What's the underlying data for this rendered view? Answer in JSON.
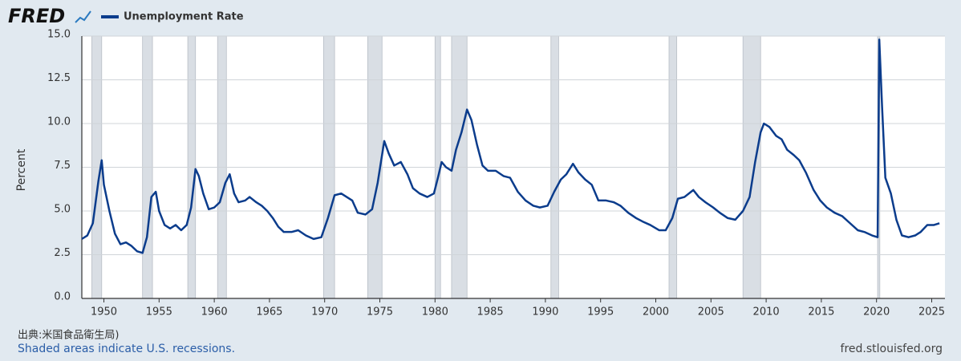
{
  "chart_data": {
    "type": "line",
    "logo": "FRED",
    "y_label": "Percent",
    "source": "出典:米国食品衛生局)",
    "note": "Shaded areas indicate U.S. recessions.",
    "website": "fred.stlouisfed.org",
    "grid": true,
    "xlim": [
      1948,
      2026.2
    ],
    "ylim": [
      0,
      15
    ],
    "xticks": [
      1950,
      1955,
      1960,
      1965,
      1970,
      1975,
      1980,
      1985,
      1990,
      1995,
      2000,
      2005,
      2010,
      2015,
      2020,
      2025
    ],
    "yticks": [
      {
        "value": 0,
        "label": "0.0"
      },
      2.5,
      {
        "value": 5,
        "label": "5.0"
      },
      7.5,
      {
        "value": 10,
        "label": "10.0"
      },
      12.5,
      {
        "value": 15,
        "label": "15.0"
      }
    ],
    "recession_color": "#d9dee4",
    "recessions": [
      [
        1948.9,
        1949.8
      ],
      [
        1953.5,
        1954.4
      ],
      [
        1957.6,
        1958.3
      ],
      [
        1960.3,
        1961.1
      ],
      [
        1969.9,
        1970.9
      ],
      [
        1973.9,
        1975.2
      ],
      [
        1980.0,
        1980.5
      ],
      [
        1981.5,
        1982.9
      ],
      [
        1990.5,
        1991.2
      ],
      [
        2001.2,
        2001.9
      ],
      [
        2007.9,
        2009.5
      ],
      [
        2020.1,
        2020.3
      ]
    ],
    "x": [
      1948.0,
      1948.5,
      1949.0,
      1949.5,
      1949.8,
      1950.0,
      1950.5,
      1951.0,
      1951.5,
      1952.0,
      1952.5,
      1953.0,
      1953.5,
      1953.9,
      1954.3,
      1954.7,
      1955.0,
      1955.5,
      1956.0,
      1956.5,
      1957.0,
      1957.5,
      1957.9,
      1958.3,
      1958.6,
      1959.0,
      1959.5,
      1960.0,
      1960.5,
      1961.0,
      1961.4,
      1961.8,
      1962.2,
      1962.8,
      1963.2,
      1963.8,
      1964.3,
      1964.8,
      1965.3,
      1965.8,
      1966.3,
      1967.0,
      1967.6,
      1968.3,
      1969.0,
      1969.7,
      1970.3,
      1970.9,
      1971.5,
      1972.0,
      1972.5,
      1973.0,
      1973.7,
      1974.3,
      1974.8,
      1975.4,
      1975.8,
      1976.3,
      1976.9,
      1977.5,
      1978.0,
      1978.6,
      1979.3,
      1979.9,
      1980.3,
      1980.6,
      1981.0,
      1981.5,
      1981.9,
      1982.4,
      1982.9,
      1983.3,
      1983.8,
      1984.3,
      1984.8,
      1985.5,
      1986.2,
      1986.8,
      1987.5,
      1988.2,
      1988.9,
      1989.5,
      1990.2,
      1990.8,
      1991.4,
      1991.9,
      1992.5,
      1993.0,
      1993.6,
      1994.2,
      1994.8,
      1995.5,
      1996.2,
      1996.8,
      1997.5,
      1998.2,
      1998.8,
      1999.5,
      2000.3,
      2000.9,
      2001.5,
      2002.0,
      2002.6,
      2003.4,
      2003.9,
      2004.5,
      2005.2,
      2005.8,
      2006.5,
      2007.2,
      2007.9,
      2008.5,
      2009.0,
      2009.5,
      2009.8,
      2010.3,
      2010.9,
      2011.4,
      2011.9,
      2012.5,
      2013.0,
      2013.6,
      2014.3,
      2014.9,
      2015.5,
      2016.2,
      2016.9,
      2017.6,
      2018.3,
      2018.9,
      2019.6,
      2020.1,
      2020.25,
      2020.5,
      2020.8,
      2021.3,
      2021.8,
      2022.3,
      2022.9,
      2023.5,
      2024.0,
      2024.6,
      2025.2,
      2025.7
    ],
    "series": [
      {
        "name": "Unemployment Rate",
        "color": "#0b3c8c",
        "values": [
          3.4,
          3.6,
          4.3,
          6.7,
          7.9,
          6.5,
          5.0,
          3.7,
          3.1,
          3.2,
          3.0,
          2.7,
          2.6,
          3.5,
          5.8,
          6.1,
          5.0,
          4.2,
          4.0,
          4.2,
          3.9,
          4.2,
          5.2,
          7.4,
          7.0,
          6.0,
          5.1,
          5.2,
          5.5,
          6.6,
          7.1,
          6.0,
          5.5,
          5.6,
          5.8,
          5.5,
          5.3,
          5.0,
          4.6,
          4.1,
          3.8,
          3.8,
          3.9,
          3.6,
          3.4,
          3.5,
          4.6,
          5.9,
          6.0,
          5.8,
          5.6,
          4.9,
          4.8,
          5.1,
          6.6,
          9.0,
          8.3,
          7.6,
          7.8,
          7.1,
          6.3,
          6.0,
          5.8,
          6.0,
          7.0,
          7.8,
          7.5,
          7.3,
          8.5,
          9.5,
          10.8,
          10.2,
          8.8,
          7.6,
          7.3,
          7.3,
          7.0,
          6.9,
          6.1,
          5.6,
          5.3,
          5.2,
          5.3,
          6.1,
          6.8,
          7.1,
          7.7,
          7.2,
          6.8,
          6.5,
          5.6,
          5.6,
          5.5,
          5.3,
          4.9,
          4.6,
          4.4,
          4.2,
          3.9,
          3.9,
          4.6,
          5.7,
          5.8,
          6.2,
          5.8,
          5.5,
          5.2,
          4.9,
          4.6,
          4.5,
          5.0,
          5.8,
          7.8,
          9.5,
          10.0,
          9.8,
          9.3,
          9.1,
          8.5,
          8.2,
          7.9,
          7.2,
          6.2,
          5.6,
          5.2,
          4.9,
          4.7,
          4.3,
          3.9,
          3.8,
          3.6,
          3.5,
          14.8,
          11.0,
          6.9,
          6.0,
          4.5,
          3.6,
          3.5,
          3.6,
          3.8,
          4.2,
          4.2,
          4.3
        ]
      }
    ]
  }
}
